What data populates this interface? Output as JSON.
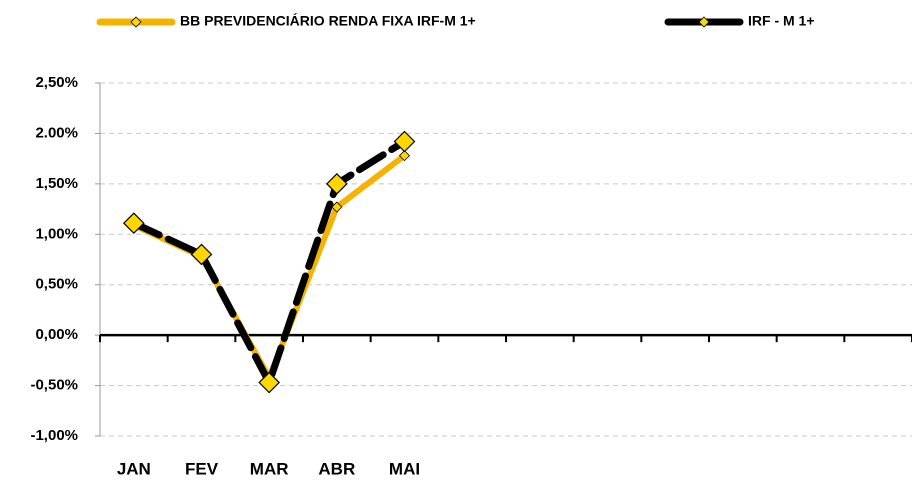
{
  "chart_data": {
    "type": "line",
    "categories": [
      "JAN",
      "FEV",
      "MAR",
      "ABR",
      "MAI",
      null,
      null,
      null,
      null,
      null,
      null,
      null
    ],
    "series": [
      {
        "name": "BB PREVIDENCIÁRIO RENDA FIXA IRF-M 1+",
        "color": "#f5b300",
        "marker_color": "#ffd700",
        "values": [
          1.09,
          0.78,
          -0.42,
          1.27,
          1.78,
          null,
          null,
          null,
          null,
          null,
          null,
          null
        ]
      },
      {
        "name": "IRF - M 1+",
        "color": "#000000",
        "marker_color": "#ffd700",
        "values": [
          1.11,
          0.8,
          -0.47,
          1.5,
          1.92,
          null,
          null,
          null,
          null,
          null,
          null,
          null
        ]
      }
    ],
    "ylim": [
      -1.0,
      2.5
    ],
    "yticks": [
      {
        "value": -1.0,
        "label": "-1,00%"
      },
      {
        "value": -0.5,
        "label": "-0,50%"
      },
      {
        "value": 0,
        "label": "0,00%"
      },
      {
        "value": 0.5,
        "label": "0,50%"
      },
      {
        "value": 1.0,
        "label": "1,00%"
      },
      {
        "value": 1.5,
        "label": "1,50%"
      },
      {
        "value": 2.0,
        "label": "2.00%"
      },
      {
        "value": 2.5,
        "label": "2,50%"
      }
    ],
    "grid": true,
    "legend": "top"
  }
}
